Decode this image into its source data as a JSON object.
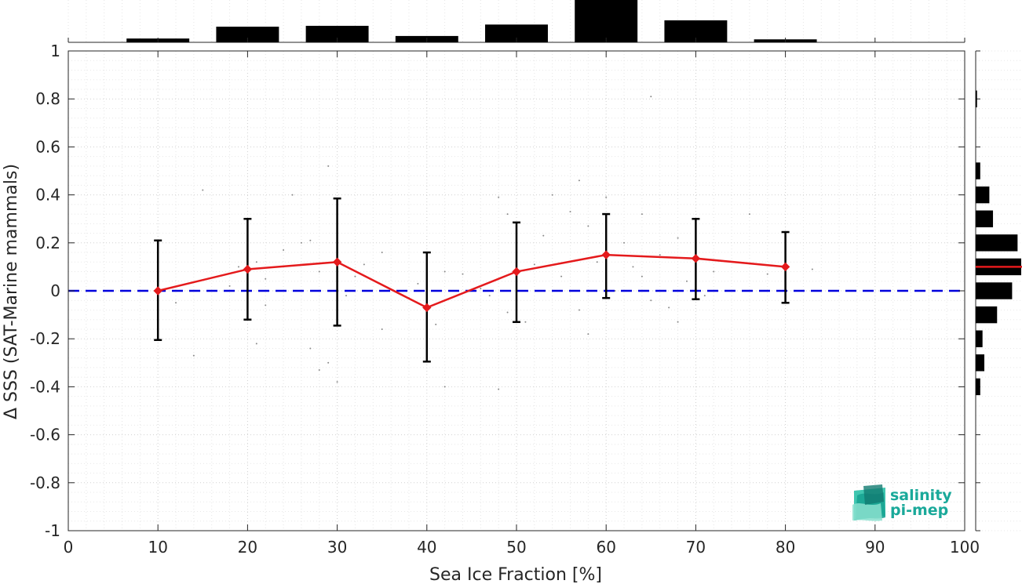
{
  "chart_data": {
    "type": "line",
    "xlabel": "Sea Ice Fraction [%]",
    "ylabel": "Δ SSS (SAT-Marine mammals)",
    "xlim": [
      0,
      100
    ],
    "ylim": [
      -1,
      1
    ],
    "xticks": [
      0,
      10,
      20,
      30,
      40,
      50,
      60,
      70,
      80,
      90,
      100
    ],
    "yticks": [
      -1,
      -0.8,
      -0.6,
      -0.4,
      -0.2,
      0,
      0.2,
      0.4,
      0.6,
      0.8,
      1
    ],
    "ytick_labels": [
      "-1",
      "-0.8",
      "-0.6",
      "-0.4",
      "-0.2",
      "0",
      "0.2",
      "0.4",
      "0.6",
      "0.8",
      "1"
    ],
    "grid": "on",
    "series": [
      {
        "color": "#e41a1c",
        "x": [
          10,
          20,
          30,
          40,
          50,
          60,
          70,
          80
        ],
        "y": [
          0.0,
          0.09,
          0.12,
          -0.07,
          0.08,
          0.15,
          0.135,
          0.1
        ],
        "err_low": [
          -0.205,
          -0.12,
          -0.145,
          -0.295,
          -0.13,
          -0.03,
          -0.035,
          -0.05
        ],
        "err_high": [
          0.21,
          0.3,
          0.385,
          0.16,
          0.285,
          0.32,
          0.3,
          0.245
        ]
      }
    ],
    "reference_line": {
      "y": 0,
      "color": "#0000dd",
      "style": "dashed"
    },
    "scatter_points": [
      [
        12,
        -0.05
      ],
      [
        14,
        -0.27
      ],
      [
        15,
        0.42
      ],
      [
        18,
        0.02
      ],
      [
        19,
        0.1
      ],
      [
        21,
        -0.22
      ],
      [
        21,
        0.12
      ],
      [
        22,
        0.05
      ],
      [
        22,
        -0.06
      ],
      [
        24,
        0.17
      ],
      [
        25,
        0.4
      ],
      [
        26,
        0.2
      ],
      [
        27,
        -0.24
      ],
      [
        27,
        0.21
      ],
      [
        28,
        -0.33
      ],
      [
        28,
        0.08
      ],
      [
        29,
        0.52
      ],
      [
        29,
        -0.3
      ],
      [
        30,
        -0.38
      ],
      [
        31,
        -0.02
      ],
      [
        32,
        0.06
      ],
      [
        33,
        0.11
      ],
      [
        35,
        -0.16
      ],
      [
        35,
        0.16
      ],
      [
        38,
        -0.03
      ],
      [
        39,
        0.03
      ],
      [
        41,
        -0.14
      ],
      [
        42,
        -0.4
      ],
      [
        42,
        0.08
      ],
      [
        44,
        0.07
      ],
      [
        46,
        0.01
      ],
      [
        47,
        -0.02
      ],
      [
        48,
        -0.41
      ],
      [
        48,
        0.39
      ],
      [
        49,
        0.32
      ],
      [
        49,
        -0.09
      ],
      [
        50,
        0.06
      ],
      [
        51,
        -0.13
      ],
      [
        52,
        0.11
      ],
      [
        53,
        0.23
      ],
      [
        54,
        0.4
      ],
      [
        55,
        0.06
      ],
      [
        56,
        0.33
      ],
      [
        57,
        -0.08
      ],
      [
        57,
        0.46
      ],
      [
        58,
        -0.18
      ],
      [
        58,
        0.27
      ],
      [
        59,
        0.12
      ],
      [
        60,
        0.39
      ],
      [
        61,
        0.0
      ],
      [
        62,
        0.2
      ],
      [
        63,
        0.1
      ],
      [
        64,
        0.06
      ],
      [
        64,
        0.32
      ],
      [
        65,
        0.81
      ],
      [
        65,
        -0.04
      ],
      [
        66,
        0.15
      ],
      [
        67,
        -0.07
      ],
      [
        68,
        0.22
      ],
      [
        68,
        -0.13
      ],
      [
        69,
        0.04
      ],
      [
        70,
        0.17
      ],
      [
        71,
        -0.02
      ],
      [
        72,
        0.08
      ],
      [
        74,
        0.12
      ],
      [
        76,
        0.32
      ],
      [
        78,
        0.07
      ],
      [
        83,
        0.09
      ]
    ],
    "top_histogram": [
      {
        "x": 10,
        "value": 0.09
      },
      {
        "x": 20,
        "value": 0.37
      },
      {
        "x": 30,
        "value": 0.39
      },
      {
        "x": 40,
        "value": 0.15
      },
      {
        "x": 50,
        "value": 0.42
      },
      {
        "x": 60,
        "value": 1.0
      },
      {
        "x": 70,
        "value": 0.52
      },
      {
        "x": 80,
        "value": 0.07
      }
    ],
    "side_histogram": [
      {
        "y": 0.8,
        "value": 0.03
      },
      {
        "y": 0.5,
        "value": 0.1
      },
      {
        "y": 0.4,
        "value": 0.3
      },
      {
        "y": 0.3,
        "value": 0.38
      },
      {
        "y": 0.2,
        "value": 0.92
      },
      {
        "y": 0.1,
        "value": 1.0
      },
      {
        "y": 0.0,
        "value": 0.8
      },
      {
        "y": -0.1,
        "value": 0.47
      },
      {
        "y": -0.2,
        "value": 0.15
      },
      {
        "y": -0.3,
        "value": 0.19
      },
      {
        "y": -0.4,
        "value": 0.1
      }
    ],
    "side_histogram_mean": {
      "y": 0.1,
      "color": "#e41a1c"
    }
  },
  "logo": {
    "line1": "salinity",
    "line2": "pi-mep",
    "color": "#1aa99a"
  }
}
